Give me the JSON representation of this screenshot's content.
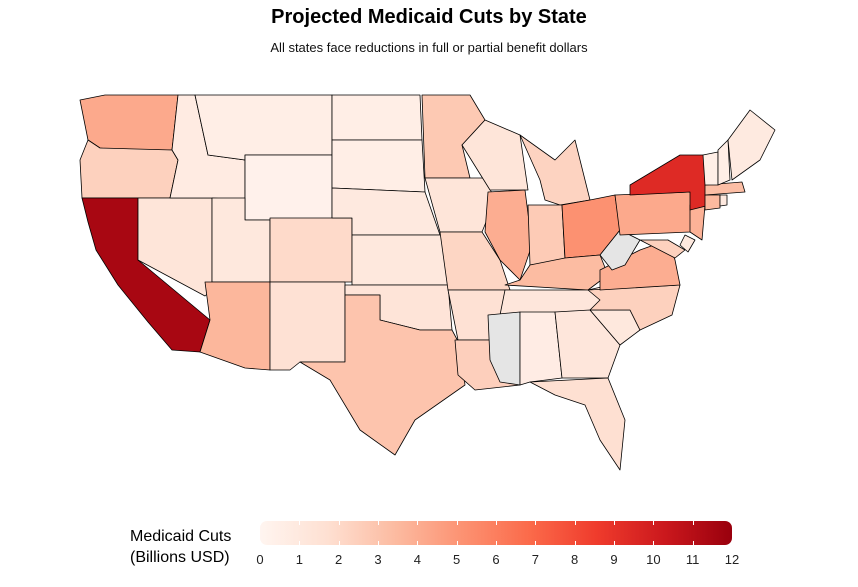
{
  "title": "Projected Medicaid Cuts by State",
  "subtitle": "All states face reductions in full or partial benefit dollars",
  "legend": {
    "title_line1": "Medicaid Cuts",
    "title_line2": "(Billions USD)",
    "ticks": [
      "0",
      "1",
      "2",
      "3",
      "4",
      "5",
      "6",
      "7",
      "8",
      "9",
      "10",
      "11",
      "12"
    ],
    "range": [
      0,
      12
    ],
    "colors": [
      "#fff5f0",
      "#fee0d2",
      "#fcbba1",
      "#fc9272",
      "#fb6a4a",
      "#ef3b2c",
      "#cb181d",
      "#99000d"
    ],
    "na_color": "#e5e5e5"
  },
  "map_data": {
    "WA": 4.2,
    "OR": 2.4,
    "CA": 11.5,
    "NV": 1.3,
    "ID": 0.8,
    "MT": 0.6,
    "WY": 0.3,
    "UT": 1.1,
    "AZ": 3.6,
    "CO": 2.0,
    "NM": 1.6,
    "ND": 0.6,
    "SD": 0.6,
    "NE": 1.0,
    "KS": 1.1,
    "OK": 1.4,
    "TX": 3.0,
    "MN": 2.8,
    "IA": 1.3,
    "MO": 2.2,
    "AR": 1.6,
    "LA": 2.5,
    "WI": 1.3,
    "IL": 4.0,
    "MI": 2.3,
    "IN": 2.7,
    "OH": 5.2,
    "KY": 3.4,
    "TN": 1.2,
    "MS": null,
    "AL": 0.7,
    "GA": 1.2,
    "FL": 1.7,
    "SC": 1.1,
    "NC": 2.4,
    "VA": 4.0,
    "WV": null,
    "MD": 2.4,
    "DE": 1.0,
    "PA": 4.2,
    "NJ": 3.8,
    "NY": 9.4,
    "CT": 3.5,
    "RI": 1.0,
    "MA": 3.3,
    "VT": 0.5,
    "NH": 0.6,
    "ME": 0.9
  }
}
